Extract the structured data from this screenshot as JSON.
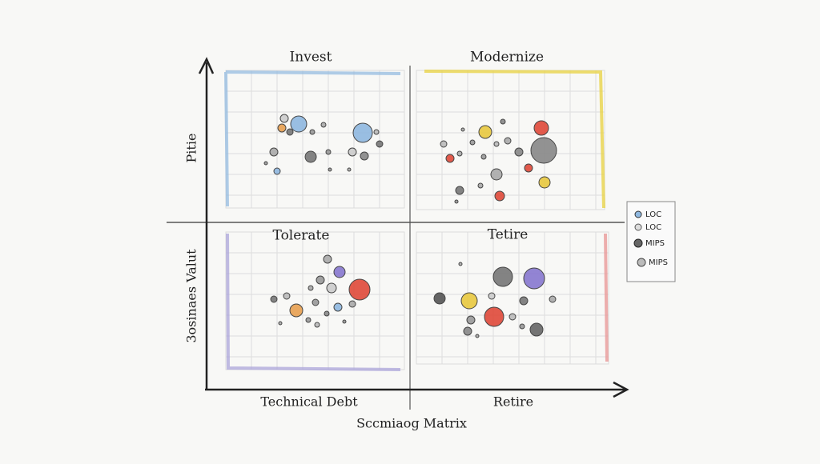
{
  "quadrants": [
    {
      "label": "Invest"
    },
    {
      "label": "Modernize"
    },
    {
      "label": "Tolerate"
    },
    {
      "label": "Tetire"
    }
  ],
  "axes": {
    "y_labels": [
      "Pitie",
      "3osinaes Valut"
    ],
    "x_labels": [
      "Technical Debt",
      "Retire"
    ]
  },
  "caption": "Sccmiaog Matrix",
  "legend": [
    {
      "label": "LOC"
    },
    {
      "label": "LOC"
    },
    {
      "label": "MIPS"
    },
    {
      "label": "MIPS"
    }
  ]
}
